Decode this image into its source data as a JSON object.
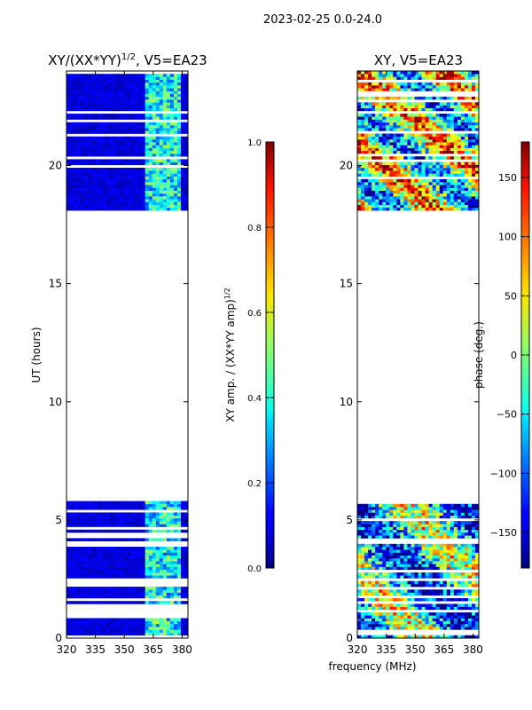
{
  "suptitle": "2023-02-25 0.0-24.0",
  "shared_xlabel": "frequency (MHz)",
  "chart_data": [
    {
      "type": "heatmap",
      "title_main": "XY/(XX*YY)",
      "title_exp": "1/2",
      "title_suffix": ", V5=EA23",
      "ylabel": "UT (hours)",
      "xlim": [
        320,
        383
      ],
      "ylim": [
        0,
        24
      ],
      "xticks": [
        320,
        335,
        350,
        365,
        380
      ],
      "yticks": [
        0,
        5,
        10,
        15,
        20
      ],
      "data_blocks_hours": [
        [
          0,
          5.8
        ],
        [
          18.1,
          24
        ]
      ],
      "bright_band_mhz": [
        361,
        380
      ],
      "colorbar": {
        "label_main": "XY amp. / (XX*YY amp)",
        "label_exp": "1/2",
        "range": [
          0.0,
          1.0
        ],
        "ticks": [
          "0.0",
          "0.2",
          "0.4",
          "0.6",
          "0.8",
          "1.0"
        ]
      }
    },
    {
      "type": "heatmap",
      "title": "XY, V5=EA23",
      "xlim": [
        320,
        383
      ],
      "ylim": [
        0,
        24
      ],
      "xticks": [
        320,
        335,
        350,
        365,
        380
      ],
      "yticks": [
        0,
        5,
        10,
        15,
        20
      ],
      "data_blocks_hours": [
        [
          0,
          5.8
        ],
        [
          18.1,
          24
        ]
      ],
      "colorbar": {
        "label": "phase (deg.)",
        "range": [
          -180,
          180
        ],
        "ticks": [
          "150",
          "100",
          "50",
          "0",
          "−50",
          "−100",
          "−150"
        ],
        "tick_values": [
          150,
          100,
          50,
          0,
          -50,
          -100,
          -150
        ]
      }
    }
  ]
}
